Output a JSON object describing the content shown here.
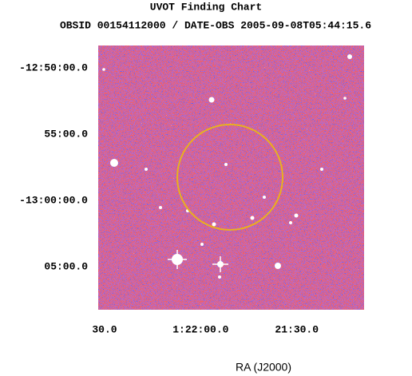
{
  "chart_data": {
    "type": "image",
    "title": "UVOT Finding Chart",
    "subtitle": "OBSID 00154112000 / DATE-OBS 2005-09-08T05:44:15.6",
    "xlabel": "RA (J2000)",
    "xlim": [
      20.6333,
      20.2875
    ],
    "xticks": [
      {
        "value": 20.625,
        "label": "30.0"
      },
      {
        "value": 20.5,
        "label": "1:22:00.0"
      },
      {
        "value": 20.375,
        "label": "21:30.0"
      }
    ],
    "ylim": [
      -13.1375,
      -12.8052
    ],
    "yticks": [
      {
        "value": -12.8333,
        "label": "-12:50:00.0"
      },
      {
        "value": -12.9167,
        "label": "55:00.0"
      },
      {
        "value": -13.0,
        "label": "-13:00:00.0"
      },
      {
        "value": -13.0833,
        "label": "05:00.0"
      }
    ]
  }
}
